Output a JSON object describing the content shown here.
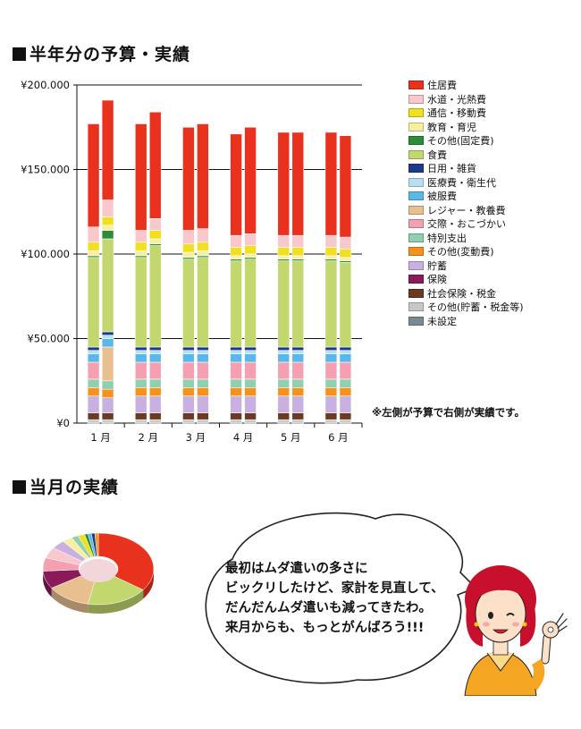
{
  "titles": {
    "budget_section": "半年分の予算・実績",
    "current_section": "当月の実績"
  },
  "note": "※左側が予算で右側が実績です。",
  "speech": {
    "lines": [
      "最初はムダ遣いの多さに",
      "ビックリしたけど、家計を見直して、",
      "だんだんムダ遣いも減ってきたわ。",
      "来月からも、もっとがんばろう!!!"
    ]
  },
  "chart_data": [
    {
      "type": "bar",
      "stacked": true,
      "title": "",
      "xlabel": "",
      "ylabel": "",
      "categories": [
        "1 月",
        "2 月",
        "3 月",
        "4 月",
        "5 月",
        "6 月"
      ],
      "bars_per_category": [
        "予算",
        "実績"
      ],
      "ylim": [
        0,
        200000
      ],
      "yticks": [
        0,
        50000,
        100000,
        150000,
        200000
      ],
      "ytick_labels": [
        "¥0",
        "¥50.000",
        "¥100.000",
        "¥150.000",
        "¥200.000"
      ],
      "grid": true,
      "legend": "right",
      "series": [
        {
          "name": "未設定",
          "color": "#7a8a92",
          "budget": [
            0,
            0,
            0,
            0,
            0,
            0
          ],
          "actual": [
            0,
            0,
            0,
            0,
            0,
            0
          ]
        },
        {
          "name": "その他(貯蓄・税金等)",
          "color": "#c8c8c8",
          "budget": [
            2000,
            2000,
            2000,
            2000,
            2000,
            2000
          ],
          "actual": [
            2000,
            2000,
            2000,
            2000,
            2000,
            2000
          ]
        },
        {
          "name": "社会保険・税金",
          "color": "#6b3a1f",
          "budget": [
            4000,
            4000,
            4000,
            4000,
            4000,
            4000
          ],
          "actual": [
            4000,
            4000,
            4000,
            4000,
            4000,
            4000
          ]
        },
        {
          "name": "保険",
          "color": "#8a1a5a",
          "budget": [
            0,
            0,
            0,
            0,
            0,
            0
          ],
          "actual": [
            0,
            0,
            0,
            0,
            0,
            0
          ]
        },
        {
          "name": "貯蓄",
          "color": "#c8b0e0",
          "budget": [
            10000,
            10000,
            10000,
            10000,
            10000,
            10000
          ],
          "actual": [
            9000,
            10000,
            10000,
            10000,
            10000,
            10000
          ]
        },
        {
          "name": "その他(変動費)",
          "color": "#f5921e",
          "budget": [
            5000,
            5000,
            5000,
            5000,
            5000,
            5000
          ],
          "actual": [
            5000,
            5000,
            5000,
            5000,
            5000,
            5000
          ]
        },
        {
          "name": "特別支出",
          "color": "#8ed0b0",
          "budget": [
            5000,
            5000,
            5000,
            5000,
            5000,
            5000
          ],
          "actual": [
            5000,
            5000,
            5000,
            5000,
            5000,
            5000
          ]
        },
        {
          "name": "交際・おこづかい",
          "color": "#f5a0b0",
          "budget": [
            10000,
            10000,
            10000,
            10000,
            10000,
            10000
          ],
          "actual": [
            0,
            10000,
            10000,
            10000,
            10000,
            10000
          ]
        },
        {
          "name": "レジャー・教養費",
          "color": "#e8c090",
          "budget": [
            0,
            0,
            0,
            0,
            0,
            0
          ],
          "actual": [
            20000,
            0,
            0,
            0,
            0,
            0
          ]
        },
        {
          "name": "被服費",
          "color": "#5ab8e8",
          "budget": [
            5000,
            5000,
            5000,
            5000,
            5000,
            5000
          ],
          "actual": [
            5000,
            5000,
            5000,
            5000,
            5000,
            5000
          ]
        },
        {
          "name": "医療費・衛生代",
          "color": "#b8e0f5",
          "budget": [
            2000,
            2000,
            2000,
            2000,
            2000,
            2000
          ],
          "actual": [
            2000,
            2000,
            2000,
            2000,
            2000,
            2000
          ]
        },
        {
          "name": "日用・雑貨",
          "color": "#1a3a8a",
          "budget": [
            2000,
            2000,
            2000,
            2000,
            2000,
            2000
          ],
          "actual": [
            2000,
            2000,
            2000,
            2000,
            2000,
            2000
          ]
        },
        {
          "name": "食費",
          "color": "#c2d86e",
          "budget": [
            53000,
            53000,
            52000,
            51000,
            51000,
            51000
          ],
          "actual": [
            55000,
            60000,
            53000,
            52000,
            51000,
            50000
          ]
        },
        {
          "name": "その他(固定費)",
          "color": "#2e8b3a",
          "budget": [
            1000,
            1000,
            1000,
            1000,
            1000,
            1000
          ],
          "actual": [
            5000,
            1000,
            1000,
            1000,
            1000,
            1000
          ]
        },
        {
          "name": "教育・育児",
          "color": "#f8f0a0",
          "budget": [
            3000,
            3000,
            3000,
            2000,
            2000,
            2000
          ],
          "actual": [
            3000,
            3000,
            3000,
            2000,
            2000,
            2000
          ]
        },
        {
          "name": "通信・移動費",
          "color": "#f0e020",
          "budget": [
            5000,
            5000,
            5000,
            5000,
            5000,
            5000
          ],
          "actual": [
            5000,
            5000,
            5000,
            5000,
            5000,
            5000
          ]
        },
        {
          "name": "水道・光熱費",
          "color": "#f8c8cc",
          "budget": [
            9000,
            7000,
            8000,
            7000,
            7000,
            7000
          ],
          "actual": [
            10000,
            7000,
            8000,
            7000,
            7000,
            7000
          ]
        },
        {
          "name": "住居費",
          "color": "#e8321e",
          "budget": [
            61000,
            63000,
            61000,
            60000,
            61000,
            61000
          ],
          "actual": [
            59000,
            63000,
            62000,
            63000,
            61000,
            60000
          ]
        }
      ],
      "legend_order": [
        "住居費",
        "水道・光熱費",
        "通信・移動費",
        "教育・育児",
        "その他(固定費)",
        "食費",
        "日用・雑貨",
        "医療費・衛生代",
        "被服費",
        "レジャー・教養費",
        "交際・おこづかい",
        "特別支出",
        "その他(変動費)",
        "貯蓄",
        "保険",
        "社会保険・税金",
        "その他(貯蓄・税金等)",
        "未設定"
      ]
    },
    {
      "type": "pie",
      "style": "donut-3d",
      "title": "",
      "slices": [
        {
          "name": "住居費",
          "value": 35,
          "color": "#e8321e"
        },
        {
          "name": "食費",
          "value": 18,
          "color": "#c2d86e"
        },
        {
          "name": "レジャー・教養費",
          "value": 13,
          "color": "#e8c090"
        },
        {
          "name": "保険",
          "value": 8,
          "color": "#8a1a5a"
        },
        {
          "name": "交際・おこづかい",
          "value": 6,
          "color": "#f5a0b0"
        },
        {
          "name": "医療費・衛生代",
          "value": 5,
          "color": "#f8c8cc"
        },
        {
          "name": "貯蓄",
          "value": 4,
          "color": "#c8b0e0"
        },
        {
          "name": "教育・育児",
          "value": 3,
          "color": "#f8f0a0"
        },
        {
          "name": "特別支出",
          "value": 2,
          "color": "#8ed0b0"
        },
        {
          "name": "通信・移動費",
          "value": 2,
          "color": "#f0e020"
        },
        {
          "name": "その他(固定費)",
          "value": 1,
          "color": "#2e8b3a"
        },
        {
          "name": "被服費",
          "value": 1,
          "color": "#5ab8e8"
        },
        {
          "name": "日用・雑貨",
          "value": 1,
          "color": "#1a3a8a"
        },
        {
          "name": "その他(変動費)",
          "value": 1,
          "color": "#f5921e"
        }
      ]
    }
  ]
}
